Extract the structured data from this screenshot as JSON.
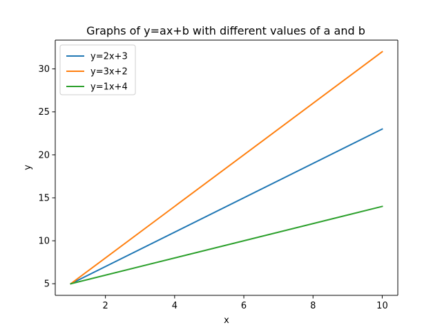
{
  "chart_data": {
    "type": "line",
    "title": "Graphs of y=ax+b with different values of a and b",
    "xlabel": "x",
    "ylabel": "y",
    "xlim": [
      0.55,
      10.45
    ],
    "ylim": [
      3.65,
      33.35
    ],
    "xticks": [
      2,
      4,
      6,
      8,
      10
    ],
    "yticks": [
      5,
      10,
      15,
      20,
      25,
      30
    ],
    "grid": false,
    "legend_position": "top-left",
    "x": [
      1,
      10
    ],
    "series": [
      {
        "name": "y=2x+3",
        "values": [
          5,
          23
        ],
        "color": "#1f77b4"
      },
      {
        "name": "y=3x+2",
        "values": [
          5,
          32
        ],
        "color": "#ff7f0e"
      },
      {
        "name": "y=1x+4",
        "values": [
          5,
          14
        ],
        "color": "#2ca02c"
      }
    ]
  }
}
